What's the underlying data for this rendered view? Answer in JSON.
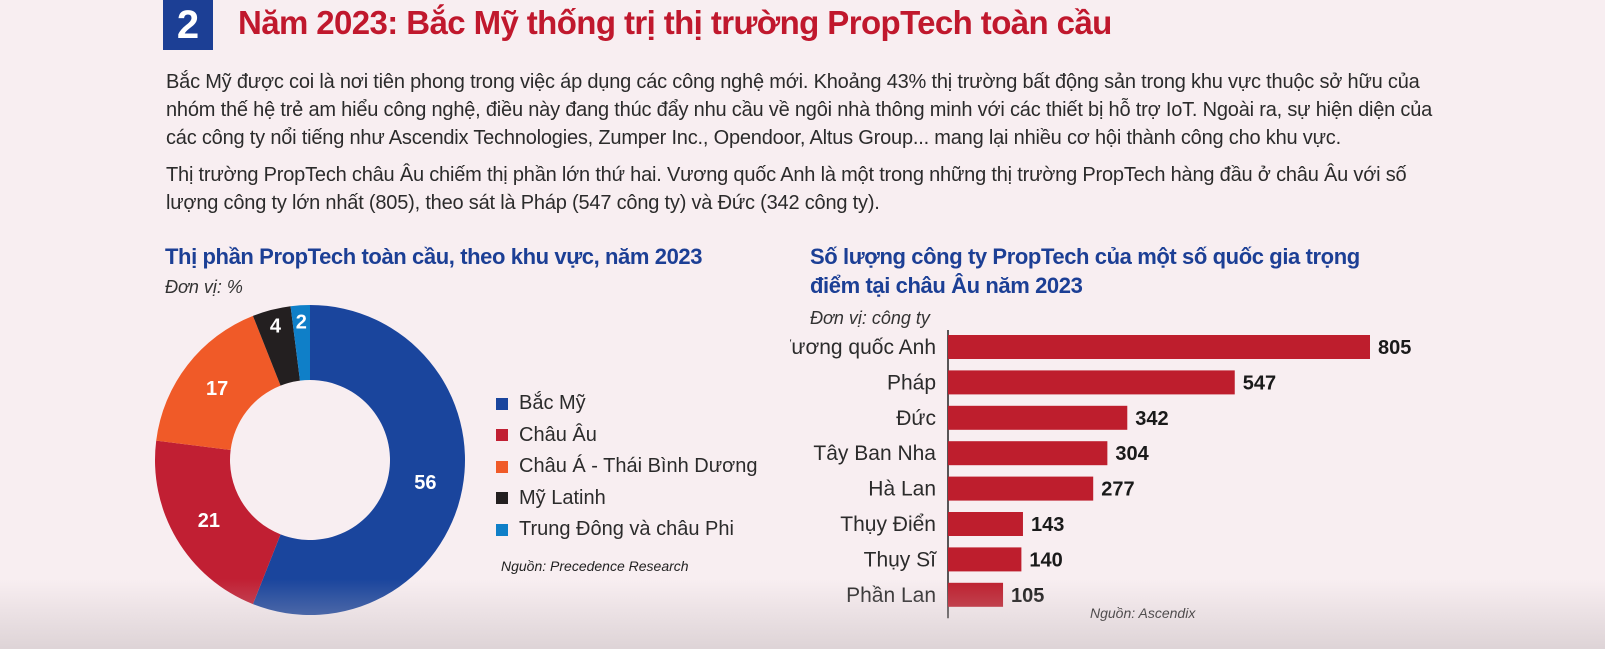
{
  "section": {
    "number": "2",
    "title": "Năm 2023: Bắc Mỹ thống trị thị trường PropTech toàn cầu"
  },
  "paragraphs": [
    "Bắc Mỹ được coi là nơi tiên phong trong việc áp dụng các công nghệ mới. Khoảng 43% thị trường bất động sản trong khu vực thuộc sở hữu của nhóm thế hệ trẻ am hiểu công nghệ, điều này đang thúc đẩy nhu cầu về ngôi nhà thông minh với các thiết bị hỗ trợ IoT. Ngoài ra, sự hiện diện của các công ty  nổi tiếng như Ascendix Technologies, Zumper Inc., Opendoor, Altus Group... mang lại nhiều cơ hội thành công cho khu vực.",
    "Thị trường PropTech châu Âu chiếm thị phần lớn thứ hai. Vương quốc Anh là một trong những thị trường PropTech hàng đầu ở châu Âu với số lượng công ty lớn nhất (805), theo sát là Pháp (547 công ty) và Đức (342 công ty)."
  ],
  "chart_data": [
    {
      "type": "pie",
      "title": "Thị phần PropTech toàn cầu, theo khu vực, năm 2023",
      "unit": "Đơn vị: %",
      "source": "Nguồn: Precedence Research",
      "legend_position": "right",
      "categories": [
        "Bắc Mỹ",
        "Châu Âu",
        "Châu Á - Thái Bình Dương",
        "Mỹ Latinh",
        "Trung Đông và châu Phi"
      ],
      "values": [
        56,
        21,
        17,
        4,
        2
      ],
      "colors": [
        "#1a459d",
        "#c11f33",
        "#f05a28",
        "#231f20",
        "#0f7fc8"
      ]
    },
    {
      "type": "bar",
      "orientation": "horizontal",
      "title": "Số lượng công ty PropTech của một số quốc gia trọng điểm tại châu Âu năm 2023",
      "unit": "Đơn vị: công ty",
      "source": "Nguồn: Ascendix",
      "categories": [
        "Vương quốc Anh",
        "Pháp",
        "Đức",
        "Tây Ban Nha",
        "Hà Lan",
        "Thụy Điển",
        "Thụy Sĩ",
        "Phần Lan"
      ],
      "values": [
        805,
        547,
        342,
        304,
        277,
        143,
        140,
        105
      ],
      "color": "#be1e2d",
      "xlim": [
        0,
        805
      ]
    }
  ]
}
